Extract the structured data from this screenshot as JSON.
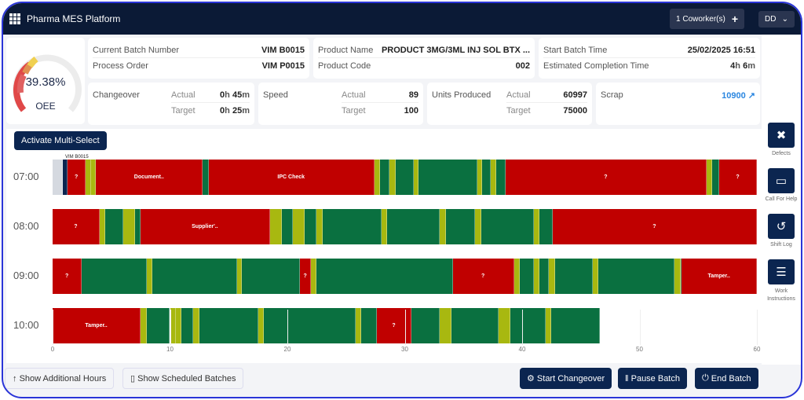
{
  "header": {
    "title": "Pharma MES Platform",
    "coworkers": "1 Coworker(s)",
    "user": "DD"
  },
  "oee": {
    "value": "39.38%",
    "label": "OEE",
    "percent": 39.38
  },
  "batch": {
    "current_batch_label": "Current Batch Number",
    "current_batch": "VIM B0015",
    "process_order_label": "Process Order",
    "process_order": "VIM P0015"
  },
  "product": {
    "name_label": "Product Name",
    "name": "PRODUCT 3MG/3ML INJ SOL BTX ...",
    "code_label": "Product Code",
    "code": "002"
  },
  "timing": {
    "start_label": "Start Batch Time",
    "start": "25/02/2025 16:51",
    "eta_label": "Estimated Completion Time",
    "eta_h": "4",
    "eta_m": "6"
  },
  "changeover": {
    "label": "Changeover",
    "actual_label": "Actual",
    "actual_h": "0",
    "actual_m": "45",
    "target_label": "Target",
    "target_h": "0",
    "target_m": "25"
  },
  "speed": {
    "label": "Speed",
    "actual_label": "Actual",
    "actual": "89",
    "target_label": "Target",
    "target": "100"
  },
  "units": {
    "label": "Units Produced",
    "actual_label": "Actual",
    "actual": "60997",
    "target_label": "Target",
    "target": "75000"
  },
  "scrap": {
    "label": "Scrap",
    "value": "10900"
  },
  "units_h": "h",
  "units_m": "m",
  "sidebar": [
    {
      "label": "Defects",
      "icon": "tools-icon"
    },
    {
      "label": "Call For Help",
      "icon": "chat-icon"
    },
    {
      "label": "Shift Log",
      "icon": "history-icon"
    },
    {
      "label": "Work Instructions",
      "icon": "checklist-icon"
    }
  ],
  "timeline": {
    "multi_select": "Activate Multi-Select",
    "batch_marker": "VIM B0015",
    "colors": {
      "run": "#0a7040",
      "stop": "#c00000",
      "minor": "#a8b810",
      "idle": "#d5d9e0",
      "batch": "#0b2550"
    },
    "x_ticks": [
      0,
      10,
      20,
      30,
      40,
      50,
      60
    ],
    "rows": [
      {
        "hour": "07:00",
        "segments": [
          [
            0,
            0.9,
            "idle",
            ""
          ],
          [
            0.9,
            1.3,
            "batch",
            ""
          ],
          [
            1.3,
            2.8,
            "stop",
            "?"
          ],
          [
            2.8,
            3.3,
            "minor",
            ""
          ],
          [
            3.3,
            3.7,
            "minor",
            ""
          ],
          [
            3.7,
            12.8,
            "stop",
            "Document.."
          ],
          [
            12.8,
            13.3,
            "run",
            ""
          ],
          [
            13.3,
            27.4,
            "stop",
            "IPC Check"
          ],
          [
            27.4,
            27.9,
            "minor",
            ""
          ],
          [
            27.9,
            28.7,
            "run",
            ""
          ],
          [
            28.7,
            29.2,
            "minor",
            ""
          ],
          [
            29.2,
            30.8,
            "run",
            ""
          ],
          [
            30.8,
            31.2,
            "minor",
            ""
          ],
          [
            31.2,
            36.2,
            "run",
            ""
          ],
          [
            36.2,
            36.6,
            "minor",
            ""
          ],
          [
            36.6,
            37.3,
            "run",
            ""
          ],
          [
            37.3,
            37.8,
            "minor",
            ""
          ],
          [
            37.8,
            38.6,
            "run",
            ""
          ],
          [
            38.6,
            55.7,
            "stop",
            "?"
          ],
          [
            55.7,
            56.2,
            "minor",
            ""
          ],
          [
            56.2,
            56.8,
            "run",
            ""
          ],
          [
            56.8,
            60,
            "stop",
            "?"
          ]
        ]
      },
      {
        "hour": "08:00",
        "segments": [
          [
            0,
            4,
            "stop",
            "?"
          ],
          [
            4,
            4.5,
            "minor",
            ""
          ],
          [
            4.5,
            6,
            "run",
            ""
          ],
          [
            6,
            7,
            "minor",
            ""
          ],
          [
            7,
            7.5,
            "run",
            ""
          ],
          [
            7.5,
            18.5,
            "stop",
            "Supplier'.."
          ],
          [
            18.5,
            19.5,
            "minor",
            ""
          ],
          [
            19.5,
            20.5,
            "run",
            ""
          ],
          [
            20.5,
            21.5,
            "minor",
            ""
          ],
          [
            21.5,
            22.5,
            "run",
            ""
          ],
          [
            22.5,
            23,
            "minor",
            ""
          ],
          [
            23,
            28,
            "run",
            ""
          ],
          [
            28,
            28.5,
            "minor",
            ""
          ],
          [
            28.5,
            33,
            "run",
            ""
          ],
          [
            33,
            33.5,
            "minor",
            ""
          ],
          [
            33.5,
            36,
            "run",
            ""
          ],
          [
            36,
            36.5,
            "minor",
            ""
          ],
          [
            36.5,
            41,
            "run",
            ""
          ],
          [
            41,
            41.5,
            "minor",
            ""
          ],
          [
            41.5,
            42.6,
            "run",
            ""
          ],
          [
            42.6,
            60,
            "stop",
            "?"
          ]
        ]
      },
      {
        "hour": "09:00",
        "segments": [
          [
            0,
            2.5,
            "stop",
            "?"
          ],
          [
            2.5,
            8,
            "run",
            ""
          ],
          [
            8,
            8.5,
            "minor",
            ""
          ],
          [
            8.5,
            15.7,
            "run",
            ""
          ],
          [
            15.7,
            16.1,
            "minor",
            ""
          ],
          [
            16.1,
            21.1,
            "run",
            ""
          ],
          [
            21.1,
            22,
            "stop",
            "?"
          ],
          [
            22,
            22.5,
            "minor",
            ""
          ],
          [
            22.5,
            34.1,
            "run",
            ""
          ],
          [
            34.1,
            39.3,
            "stop",
            "?"
          ],
          [
            39.3,
            39.8,
            "minor",
            ""
          ],
          [
            39.8,
            41,
            "run",
            ""
          ],
          [
            41,
            41.5,
            "minor",
            ""
          ],
          [
            41.5,
            42.3,
            "run",
            ""
          ],
          [
            42.3,
            42.8,
            "minor",
            ""
          ],
          [
            42.8,
            46,
            "run",
            ""
          ],
          [
            46,
            46.5,
            "minor",
            ""
          ],
          [
            46.5,
            53,
            "run",
            ""
          ],
          [
            53,
            53.5,
            "minor",
            ""
          ],
          [
            53.5,
            53.6,
            "run",
            ""
          ],
          [
            53.6,
            60,
            "stop",
            "Tamper.."
          ]
        ]
      },
      {
        "hour": "10:00",
        "segments": [
          [
            0,
            7.5,
            "stop",
            "Tamper.."
          ],
          [
            7.5,
            8,
            "minor",
            ""
          ],
          [
            8,
            10,
            "run",
            ""
          ],
          [
            10,
            10.5,
            "minor",
            ""
          ],
          [
            10.5,
            11,
            "minor",
            ""
          ],
          [
            11,
            12,
            "run",
            ""
          ],
          [
            12,
            12.5,
            "minor",
            ""
          ],
          [
            12.5,
            17.5,
            "run",
            ""
          ],
          [
            17.5,
            18,
            "minor",
            ""
          ],
          [
            18,
            25.8,
            "run",
            ""
          ],
          [
            25.8,
            26.3,
            "minor",
            ""
          ],
          [
            26.3,
            27.6,
            "run",
            ""
          ],
          [
            27.6,
            30.6,
            "stop",
            "?"
          ],
          [
            30.6,
            33,
            "run",
            ""
          ],
          [
            33,
            34,
            "minor",
            ""
          ],
          [
            34,
            38,
            "run",
            ""
          ],
          [
            38,
            39,
            "minor",
            ""
          ],
          [
            39,
            42,
            "run",
            ""
          ],
          [
            42,
            42.5,
            "minor",
            ""
          ],
          [
            42.5,
            46.6,
            "run",
            ""
          ]
        ]
      }
    ]
  },
  "footer": {
    "additional_hours": "Show Additional Hours",
    "scheduled_batches": "Show Scheduled Batches",
    "start_changeover": "Start Changeover",
    "pause_batch": "Pause Batch",
    "end_batch": "End Batch"
  }
}
